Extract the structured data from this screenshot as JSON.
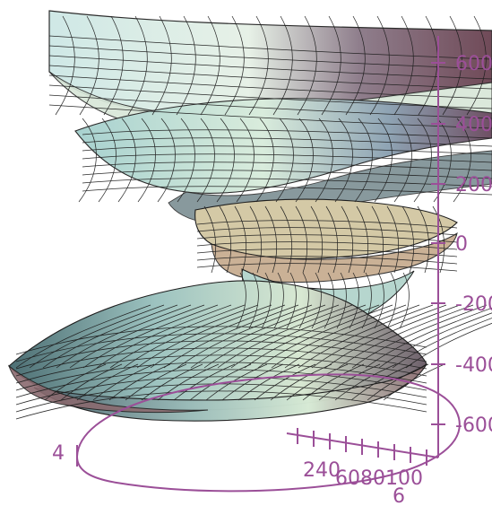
{
  "plot": {
    "axis_color": "#9b4f98",
    "z_ticks": [
      "600",
      "400",
      "200",
      "0",
      "-200",
      "-400",
      "-600"
    ],
    "x_ticks": [
      "240",
      "6080",
      "100"
    ],
    "x_tick_extra": "6",
    "y_tick_left": "4"
  }
}
